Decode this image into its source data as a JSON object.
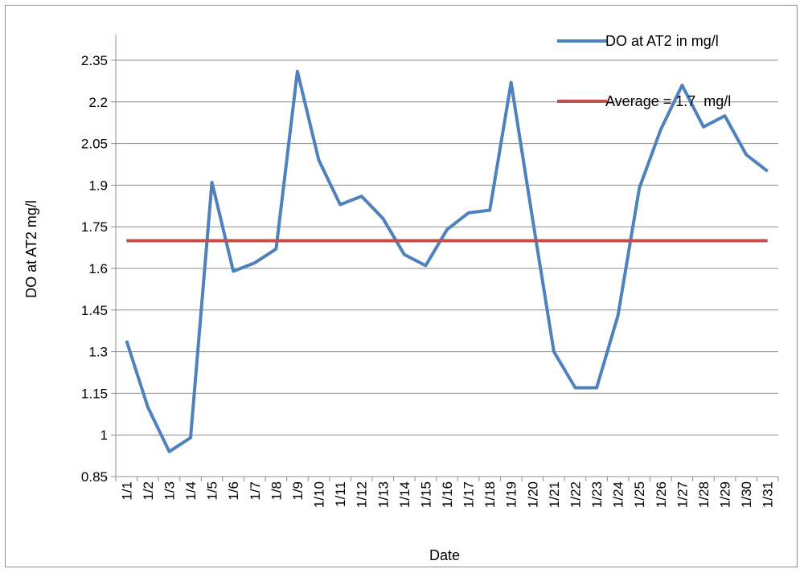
{
  "chart_data": {
    "type": "line",
    "title": "",
    "xlabel": "Date",
    "ylabel": "DO at AT2 mg/l",
    "ylim": [
      0.85,
      2.35
    ],
    "yticks": [
      "0.85",
      "1",
      "1.15",
      "1.3",
      "1.45",
      "1.6",
      "1.75",
      "1.9",
      "2.05",
      "2.2",
      "2.35"
    ],
    "grid": true,
    "legend_position": "top-right",
    "categories": [
      "1/1",
      "1/2",
      "1/3",
      "1/4",
      "1/5",
      "1/6",
      "1/7",
      "1/8",
      "1/9",
      "1/10",
      "1/11",
      "1/12",
      "1/13",
      "1/14",
      "1/15",
      "1/16",
      "1/17",
      "1/18",
      "1/19",
      "1/20",
      "1/21",
      "1/22",
      "1/23",
      "1/24",
      "1/25",
      "1/26",
      "1/27",
      "1/28",
      "1/29",
      "1/30",
      "1/31"
    ],
    "series": [
      {
        "name": "DO at AT2 in mg/l",
        "color": "#4f81bd",
        "values": [
          1.34,
          1.1,
          0.94,
          0.99,
          1.91,
          1.59,
          1.62,
          1.67,
          2.31,
          1.99,
          1.83,
          1.86,
          1.78,
          1.65,
          1.61,
          1.74,
          1.8,
          1.81,
          2.27,
          1.78,
          1.3,
          1.17,
          1.17,
          1.43,
          1.89,
          2.1,
          2.26,
          2.11,
          2.15,
          2.01,
          1.95
        ]
      },
      {
        "name": "Average = 1.7  mg/l",
        "color": "#c0504d",
        "values": [
          1.7,
          1.7,
          1.7,
          1.7,
          1.7,
          1.7,
          1.7,
          1.7,
          1.7,
          1.7,
          1.7,
          1.7,
          1.7,
          1.7,
          1.7,
          1.7,
          1.7,
          1.7,
          1.7,
          1.7,
          1.7,
          1.7,
          1.7,
          1.7,
          1.7,
          1.7,
          1.7,
          1.7,
          1.7,
          1.7,
          1.7
        ]
      }
    ]
  }
}
